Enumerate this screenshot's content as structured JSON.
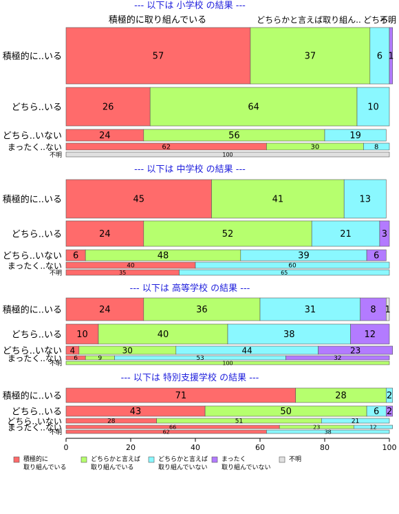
{
  "colors": {
    "積極的に取り組んでいる": "#FF6B6B",
    "どちらかと言えば取り組んでいる": "#B6FF6E",
    "どちらかと言えば取り組んでいない": "#8AF8FF",
    "まったく取り組んでいない": "#B37BFF",
    "不明": "#E0E0E0",
    "title": "#1E1EDC",
    "border": "#555555"
  },
  "top_column_labels": [
    "積極的に取り組んでいる",
    "どちらかと言えば取り組ん..",
    "どちら..",
    "不明"
  ],
  "legend": [
    {
      "key": "積極的に取り組んでいる",
      "lines": [
        "積極的に",
        "取り組んでいる"
      ]
    },
    {
      "key": "どちらかと言えば取り組んでいる",
      "lines": [
        "どちらかと言えば",
        "取り組んでいる"
      ]
    },
    {
      "key": "どちらかと言えば取り組んでいない",
      "lines": [
        "どちらかと言えば",
        "取り組んでいない"
      ]
    },
    {
      "key": "まったく取り組んでいない",
      "lines": [
        "まったく",
        "取り組んでいない"
      ]
    },
    {
      "key": "不明",
      "lines": [
        "不明"
      ]
    }
  ],
  "chart_data": {
    "type": "bar",
    "orientation": "horizontal",
    "stacked": "percent",
    "xlim": [
      0,
      100
    ],
    "x_ticks": [
      0,
      20,
      40,
      60,
      80,
      100
    ],
    "series_names": [
      "積極的に取り組んでいる",
      "どちらかと言えば取り組んでいる",
      "どちらかと言えば取り組んでいない",
      "まったく取り組んでいない",
      "不明"
    ],
    "panels": [
      {
        "title": "--- 以下は 小学校 の結果 ---",
        "rows": [
          {
            "label": "積極的に..いる",
            "values": [
              57,
              37,
              6,
              1,
              0
            ]
          },
          {
            "label": "どちら..いる",
            "values": [
              26,
              64,
              10,
              0,
              0
            ]
          },
          {
            "label": "どちら..いない",
            "values": [
              24,
              56,
              19,
              0,
              0
            ]
          },
          {
            "label": "まったく..ない",
            "values": [
              62,
              30,
              8,
              0,
              0
            ]
          },
          {
            "label": "不明",
            "values": [
              0,
              0,
              0,
              0,
              100
            ]
          }
        ]
      },
      {
        "title": "--- 以下は 中学校 の結果 ---",
        "rows": [
          {
            "label": "積極的に..いる",
            "values": [
              45,
              41,
              13,
              0,
              0
            ]
          },
          {
            "label": "どちら..いる",
            "values": [
              24,
              52,
              21,
              3,
              0
            ]
          },
          {
            "label": "どちら..いない",
            "values": [
              6,
              48,
              39,
              6,
              0
            ]
          },
          {
            "label": "まったく..ない",
            "values": [
              40,
              0,
              60,
              0,
              0
            ]
          },
          {
            "label": "不明",
            "values": [
              35,
              0,
              65,
              0,
              0
            ]
          }
        ]
      },
      {
        "title": "--- 以下は 高等学校 の結果 ---",
        "rows": [
          {
            "label": "積極的に..いる",
            "values": [
              24,
              36,
              31,
              8,
              1
            ]
          },
          {
            "label": "どちら..いる",
            "values": [
              10,
              40,
              38,
              12,
              0
            ]
          },
          {
            "label": "どちら..いない",
            "values": [
              4,
              30,
              44,
              23,
              0
            ]
          },
          {
            "label": "まったく..ない",
            "values": [
              6,
              9,
              53,
              32,
              0
            ]
          },
          {
            "label": "不明",
            "values": [
              0,
              100,
              0,
              0,
              0
            ]
          }
        ]
      },
      {
        "title": "--- 以下は 特別支援学校 の結果 ---",
        "rows": [
          {
            "label": "積極的に..いる",
            "values": [
              71,
              28,
              2,
              0,
              0
            ]
          },
          {
            "label": "どちら..いる",
            "values": [
              43,
              50,
              6,
              2,
              0
            ]
          },
          {
            "label": "どちら..いない",
            "values": [
              28,
              51,
              21,
              0,
              0
            ]
          },
          {
            "label": "まったく..ない",
            "values": [
              66,
              23,
              12,
              0,
              0
            ]
          },
          {
            "label": "不明",
            "values": [
              62,
              0,
              38,
              0,
              0
            ]
          }
        ]
      }
    ]
  }
}
